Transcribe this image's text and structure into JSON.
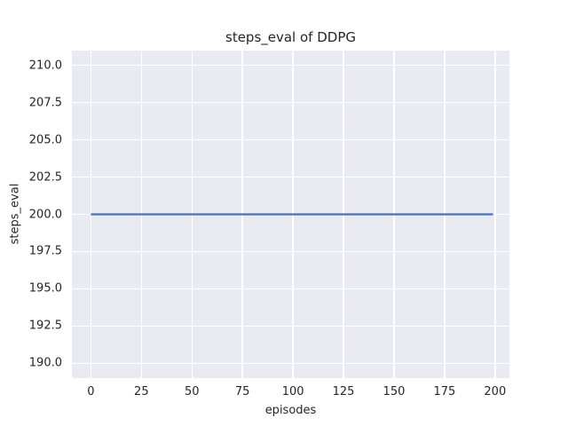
{
  "figure": {
    "background_color": "#ffffff",
    "plot_background_color": "#eaeaf2",
    "grid_color": "#ffffff",
    "text_color": "#262626"
  },
  "chart_data": {
    "type": "line",
    "title": "steps_eval of DDPG",
    "xlabel": "episodes",
    "ylabel": "steps_eval",
    "grid": true,
    "legend": false,
    "xlim": [
      -9.4,
      207.1
    ],
    "ylim": [
      189.0,
      211.0
    ],
    "xticks": [
      {
        "value": 0,
        "label": "0"
      },
      {
        "value": 25,
        "label": "25"
      },
      {
        "value": 50,
        "label": "50"
      },
      {
        "value": 75,
        "label": "75"
      },
      {
        "value": 100,
        "label": "100"
      },
      {
        "value": 125,
        "label": "125"
      },
      {
        "value": 150,
        "label": "150"
      },
      {
        "value": 175,
        "label": "175"
      },
      {
        "value": 200,
        "label": "200"
      }
    ],
    "yticks": [
      {
        "value": 190.0,
        "label": "190.0"
      },
      {
        "value": 192.5,
        "label": "192.5"
      },
      {
        "value": 195.0,
        "label": "195.0"
      },
      {
        "value": 197.5,
        "label": "197.5"
      },
      {
        "value": 200.0,
        "label": "200.0"
      },
      {
        "value": 202.5,
        "label": "202.5"
      },
      {
        "value": 205.0,
        "label": "205.0"
      },
      {
        "value": 207.5,
        "label": "207.5"
      },
      {
        "value": 210.0,
        "label": "210.0"
      }
    ],
    "series": [
      {
        "name": "steps_eval",
        "color": "#4c72b0",
        "line_width": 2.25,
        "x": [
          0,
          199
        ],
        "y": [
          200,
          200
        ]
      }
    ]
  }
}
